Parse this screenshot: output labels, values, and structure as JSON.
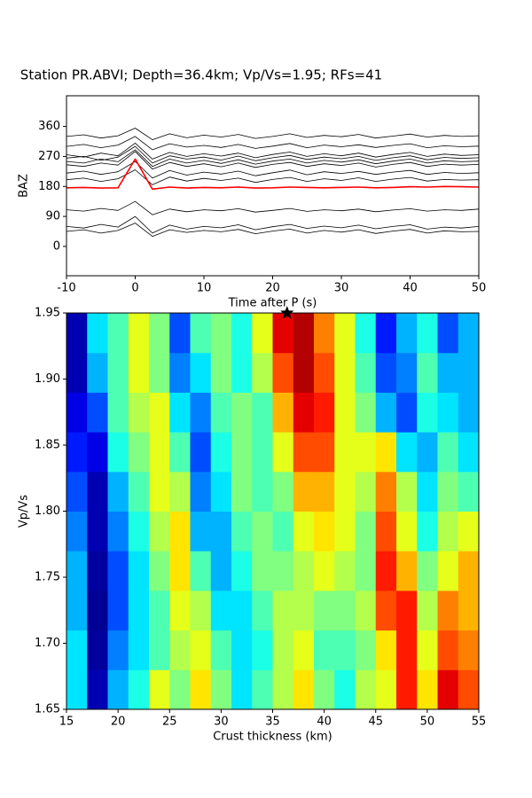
{
  "chart_data": [
    {
      "type": "line",
      "title": "Station PR.ABVI; Depth=36.4km; Vp/Vs=1.95; RFs=41",
      "xlabel": "Time after P (s)",
      "ylabel": "BAZ",
      "xlim": [
        -10,
        50
      ],
      "ylim": [
        -88,
        452
      ],
      "xticks": [
        -10,
        0,
        10,
        20,
        30,
        40,
        50
      ],
      "yticks": [
        0,
        90,
        180,
        270,
        360
      ],
      "x": [
        -10,
        -7.5,
        -5,
        -2.5,
        0,
        2.5,
        5,
        7.5,
        10,
        12.5,
        15,
        17.5,
        20,
        22.5,
        25,
        27.5,
        30,
        32.5,
        35,
        37.5,
        40,
        42.5,
        45,
        47.5,
        50
      ],
      "series": [
        {
          "color": "#000000",
          "values": [
            330,
            335,
            325,
            332,
            355,
            320,
            338,
            326,
            334,
            328,
            336,
            324,
            330,
            338,
            327,
            333,
            329,
            336,
            325,
            331,
            337,
            328,
            333,
            330,
            332
          ]
        },
        {
          "color": "#000000",
          "values": [
            300,
            306,
            296,
            304,
            330,
            290,
            308,
            298,
            303,
            297,
            306,
            294,
            301,
            309,
            296,
            304,
            299,
            305,
            297,
            303,
            308,
            296,
            302,
            299,
            301
          ]
        },
        {
          "color": "#000000",
          "values": [
            275,
            268,
            280,
            272,
            310,
            262,
            282,
            270,
            278,
            271,
            280,
            266,
            276,
            283,
            270,
            278,
            272,
            280,
            268,
            276,
            282,
            270,
            277,
            273,
            275
          ]
        },
        {
          "color": "#000000",
          "values": [
            265,
            270,
            258,
            268,
            300,
            250,
            272,
            262,
            268,
            259,
            271,
            257,
            266,
            273,
            261,
            268,
            263,
            270,
            258,
            266,
            272,
            260,
            267,
            264,
            266
          ]
        },
        {
          "color": "#000000",
          "values": [
            255,
            250,
            262,
            254,
            290,
            240,
            262,
            250,
            258,
            249,
            260,
            247,
            256,
            262,
            250,
            258,
            253,
            260,
            248,
            256,
            262,
            250,
            257,
            254,
            256
          ]
        },
        {
          "color": "#000000",
          "values": [
            245,
            240,
            250,
            244,
            285,
            232,
            252,
            240,
            248,
            239,
            250,
            237,
            246,
            252,
            240,
            248,
            243,
            250,
            238,
            246,
            252,
            240,
            247,
            244,
            246
          ]
        },
        {
          "color": "#000000",
          "values": [
            220,
            226,
            216,
            224,
            255,
            205,
            228,
            214,
            223,
            217,
            226,
            212,
            221,
            229,
            215,
            224,
            219,
            225,
            216,
            223,
            228,
            216,
            222,
            219,
            221
          ]
        },
        {
          "color": "#000000",
          "values": [
            200,
            205,
            195,
            203,
            230,
            185,
            208,
            196,
            204,
            198,
            205,
            192,
            201,
            207,
            195,
            203,
            198,
            206,
            195,
            202,
            207,
            196,
            201,
            199,
            200
          ]
        },
        {
          "color": "#000000",
          "values": [
            110,
            106,
            114,
            108,
            135,
            95,
            112,
            104,
            110,
            107,
            113,
            103,
            108,
            114,
            105,
            110,
            107,
            112,
            104,
            109,
            113,
            106,
            110,
            108,
            112
          ]
        },
        {
          "color": "#000000",
          "values": [
            60,
            55,
            66,
            58,
            90,
            40,
            64,
            52,
            60,
            56,
            65,
            50,
            59,
            66,
            54,
            61,
            56,
            64,
            53,
            60,
            65,
            52,
            58,
            55,
            60
          ]
        },
        {
          "color": "#000000",
          "values": [
            45,
            50,
            40,
            48,
            70,
            30,
            50,
            42,
            48,
            44,
            51,
            38,
            46,
            52,
            40,
            48,
            43,
            50,
            39,
            46,
            51,
            40,
            47,
            44,
            45
          ]
        },
        {
          "color": "#ff0000",
          "values": [
            176,
            177,
            175,
            176,
            262,
            172,
            178,
            175,
            177,
            176,
            178,
            175,
            176,
            178,
            177,
            176,
            177,
            178,
            176,
            177,
            179,
            178,
            180,
            179,
            178
          ]
        }
      ]
    },
    {
      "type": "heatmap",
      "colormap": "jet",
      "xlabel": "Crust thickness (km)",
      "ylabel": "Vp/Vs",
      "xlim": [
        15,
        55
      ],
      "ylim": [
        1.65,
        1.95
      ],
      "xticks": [
        15,
        20,
        25,
        30,
        35,
        40,
        45,
        50,
        55
      ],
      "yticks": [
        1.65,
        {
          "value": 1.7,
          "label": "1.70"
        },
        1.75,
        {
          "value": 1.8,
          "label": "1.80"
        },
        1.85,
        {
          "value": 1.9,
          "label": "1.90"
        },
        1.95
      ],
      "x_edges": [
        15,
        17,
        19,
        21,
        23,
        25,
        27,
        29,
        31,
        33,
        35,
        37,
        39,
        41,
        43,
        45,
        47,
        49,
        51,
        53,
        55
      ],
      "y_edges": [
        1.65,
        1.68,
        1.71,
        1.74,
        1.77,
        1.8,
        1.83,
        1.86,
        1.89,
        1.92,
        1.95
      ],
      "z": [
        [
          0.35,
          0.05,
          0.3,
          0.4,
          0.6,
          0.5,
          0.65,
          0.5,
          0.35,
          0.45,
          0.55,
          0.65,
          0.5,
          0.4,
          0.55,
          0.6,
          0.85,
          0.65,
          0.9,
          0.8
        ],
        [
          0.35,
          0.03,
          0.25,
          0.35,
          0.45,
          0.55,
          0.6,
          0.45,
          0.35,
          0.4,
          0.55,
          0.6,
          0.45,
          0.45,
          0.5,
          0.65,
          0.85,
          0.6,
          0.8,
          0.75
        ],
        [
          0.3,
          0.02,
          0.2,
          0.35,
          0.45,
          0.6,
          0.55,
          0.35,
          0.35,
          0.45,
          0.55,
          0.55,
          0.5,
          0.5,
          0.55,
          0.8,
          0.85,
          0.55,
          0.75,
          0.7
        ],
        [
          0.3,
          0.03,
          0.2,
          0.35,
          0.5,
          0.65,
          0.45,
          0.3,
          0.4,
          0.5,
          0.5,
          0.55,
          0.6,
          0.55,
          0.5,
          0.85,
          0.7,
          0.5,
          0.6,
          0.7
        ],
        [
          0.25,
          0.05,
          0.25,
          0.4,
          0.55,
          0.65,
          0.3,
          0.3,
          0.45,
          0.5,
          0.45,
          0.6,
          0.65,
          0.6,
          0.5,
          0.8,
          0.6,
          0.4,
          0.55,
          0.6
        ],
        [
          0.2,
          0.05,
          0.3,
          0.45,
          0.6,
          0.55,
          0.25,
          0.35,
          0.5,
          0.45,
          0.5,
          0.7,
          0.7,
          0.6,
          0.55,
          0.75,
          0.55,
          0.35,
          0.5,
          0.45
        ],
        [
          0.15,
          0.1,
          0.4,
          0.5,
          0.6,
          0.45,
          0.2,
          0.4,
          0.5,
          0.45,
          0.6,
          0.8,
          0.8,
          0.6,
          0.6,
          0.65,
          0.35,
          0.3,
          0.45,
          0.35
        ],
        [
          0.1,
          0.2,
          0.45,
          0.55,
          0.6,
          0.35,
          0.25,
          0.45,
          0.5,
          0.45,
          0.7,
          0.9,
          0.85,
          0.6,
          0.5,
          0.3,
          0.2,
          0.4,
          0.35,
          0.3
        ],
        [
          0.05,
          0.3,
          0.45,
          0.6,
          0.5,
          0.25,
          0.35,
          0.5,
          0.4,
          0.55,
          0.8,
          0.95,
          0.8,
          0.6,
          0.45,
          0.2,
          0.25,
          0.45,
          0.3,
          0.3
        ],
        [
          0.05,
          0.35,
          0.45,
          0.6,
          0.5,
          0.2,
          0.45,
          0.5,
          0.4,
          0.6,
          0.9,
          0.95,
          0.75,
          0.6,
          0.4,
          0.15,
          0.3,
          0.4,
          0.2,
          0.3
        ]
      ],
      "marker": {
        "x": 36.4,
        "y": 1.95
      }
    }
  ]
}
